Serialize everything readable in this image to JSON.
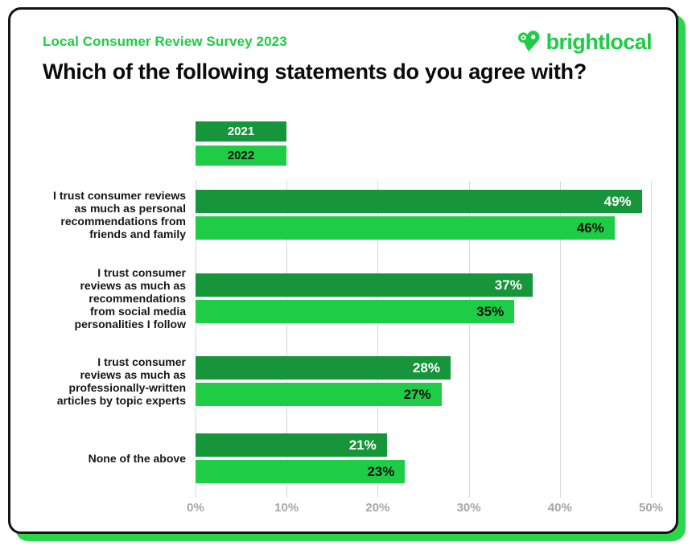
{
  "header": {
    "eyebrow": "Local Consumer Review Survey 2023",
    "title": "Which of the following statements do you agree with?",
    "brand": "brightlocal"
  },
  "chart_data": {
    "type": "bar",
    "orientation": "horizontal",
    "title": "Which of the following statements do you agree with?",
    "categories": [
      [
        "I trust consumer reviews",
        "as much as personal",
        "recommendations from",
        "friends and family"
      ],
      [
        "I trust consumer",
        "reviews as much as",
        "recommendations",
        "from social media",
        "personalities I follow"
      ],
      [
        "I trust consumer",
        "reviews as much as",
        "professionally-written",
        "articles by topic experts"
      ],
      [
        "None of the above"
      ]
    ],
    "series": [
      {
        "name": "2021",
        "color": "#17953b",
        "label_color": "#ffffff",
        "values": [
          49,
          37,
          28,
          21
        ]
      },
      {
        "name": "2022",
        "color": "#1fcc45",
        "label_color": "#101010",
        "values": [
          46,
          35,
          27,
          23
        ]
      }
    ],
    "value_suffix": "%",
    "x_ticks": [
      "0%",
      "10%",
      "20%",
      "30%",
      "40%",
      "50%"
    ],
    "xlim": [
      0,
      50
    ],
    "grid": "vertical",
    "legend_position": "top-left-of-plot"
  },
  "colors": {
    "accent_green": "#1fcc45",
    "dark_green": "#17953b",
    "card_border": "#141414",
    "card_shadow": "#2bd64d",
    "axis_text": "#a6a6a6",
    "gridline": "#d9d9d9",
    "title_text": "#0b0b0b",
    "legend_2021_text": "#ffffff",
    "legend_2022_text": "#101010"
  }
}
